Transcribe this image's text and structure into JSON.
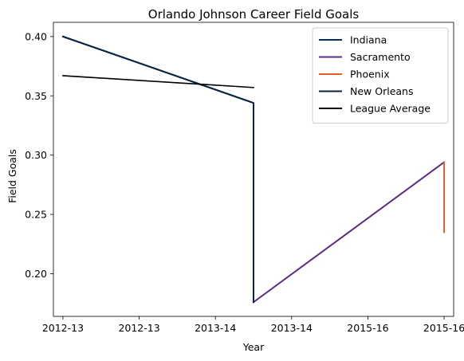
{
  "chart_data": {
    "type": "line",
    "title": "Orlando Johnson Career Field Goals",
    "xlabel": "Year",
    "ylabel": "Field Goals",
    "x_tick_labels": [
      "2012-13",
      "2012-13",
      "2013-14",
      "2013-14",
      "2015-16",
      "2015-16"
    ],
    "y_tick_labels": [
      "0.20",
      "0.25",
      "0.30",
      "0.35",
      "0.40"
    ],
    "y_ticks": [
      0.2,
      0.25,
      0.3,
      0.35,
      0.4
    ],
    "xlim": [
      -0.1,
      4.1
    ],
    "ylim": [
      0.164,
      0.412
    ],
    "grid": false,
    "legend_position": "top-right",
    "series": [
      {
        "name": "Indiana",
        "color": "#002D62",
        "points": [
          [
            0,
            0.4
          ],
          [
            2,
            0.344
          ],
          [
            2,
            0.176
          ]
        ]
      },
      {
        "name": "Sacramento",
        "color": "#5A2D81",
        "points": [
          [
            2,
            0.176
          ],
          [
            4,
            0.294
          ]
        ]
      },
      {
        "name": "Phoenix",
        "color": "#E56020",
        "points": [
          [
            4,
            0.294
          ],
          [
            4,
            0.235
          ]
        ]
      },
      {
        "name": "New Orleans",
        "color": "#0C2340",
        "points": [
          [
            0,
            0.4
          ],
          [
            2,
            0.344
          ],
          [
            2,
            0.176
          ]
        ]
      },
      {
        "name": "League Average",
        "color": "#000000",
        "points": [
          [
            0,
            0.367
          ],
          [
            2,
            0.357
          ]
        ]
      }
    ]
  }
}
